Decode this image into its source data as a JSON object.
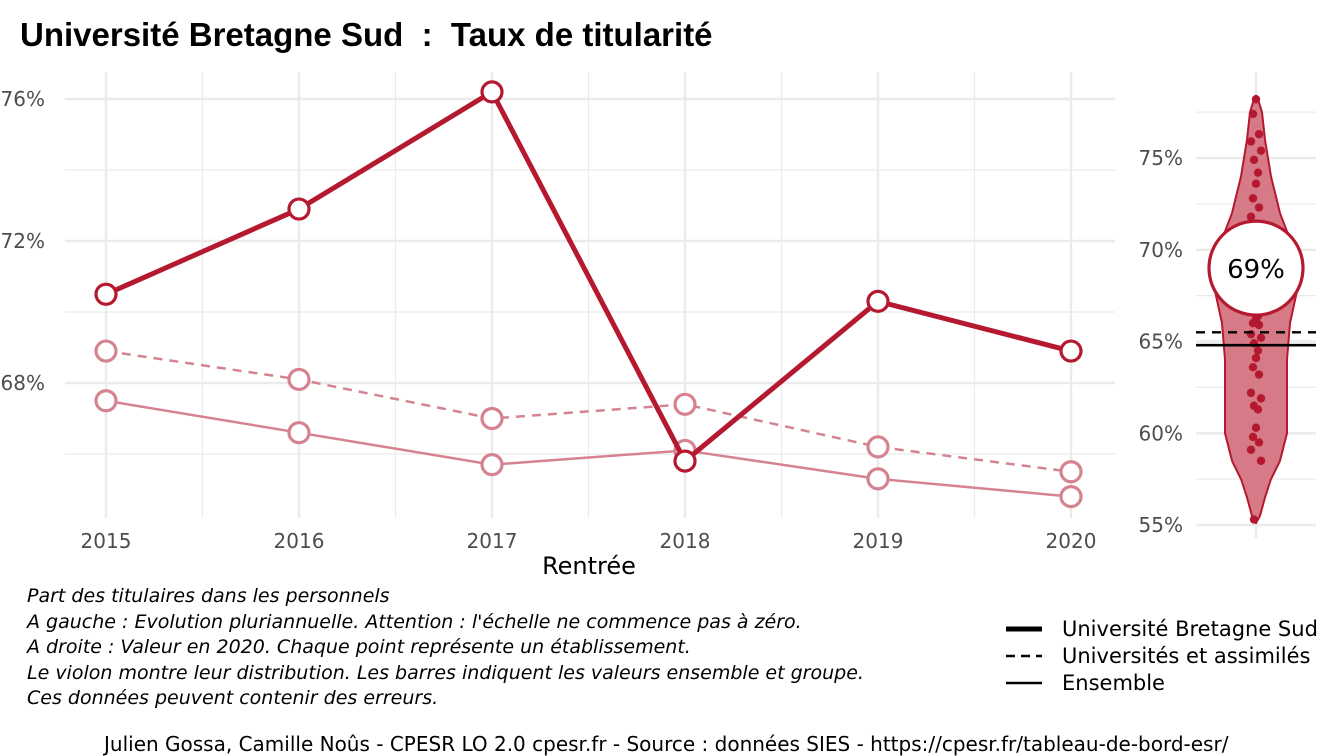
{
  "title": "Université Bretagne Sud  :  Taux de titularité",
  "chart_data": [
    {
      "type": "line",
      "x": [
        "2015",
        "2016",
        "2017",
        "2018",
        "2019",
        "2020"
      ],
      "xlabel": "Rentrée",
      "ylabel": "",
      "ylim": [
        63.5,
        76.8
      ],
      "yticks": [
        "68%",
        "72%",
        "76%"
      ],
      "y_tick_values": [
        68,
        72,
        76
      ],
      "grid": true,
      "series": [
        {
          "name": "Université Bretagne Sud",
          "style": "solid-thick",
          "values": [
            70.5,
            72.9,
            76.2,
            65.8,
            70.3,
            68.9
          ]
        },
        {
          "name": "Universités et assimilés",
          "style": "dashed",
          "values": [
            68.9,
            68.1,
            67.0,
            67.4,
            66.2,
            65.5
          ]
        },
        {
          "name": "Ensemble",
          "style": "solid-thin",
          "values": [
            67.5,
            66.6,
            65.7,
            66.1,
            65.3,
            64.8
          ]
        }
      ]
    },
    {
      "type": "violin",
      "ylim": [
        54.5,
        79
      ],
      "yticks": [
        "55%",
        "60%",
        "65%",
        "70%",
        "75%"
      ],
      "y_tick_values": [
        55,
        60,
        65,
        70,
        75
      ],
      "current_value_label": "69%",
      "current_value": 69,
      "group_value": 65.5,
      "overall_value": 64.8,
      "points": [
        78.2,
        77.4,
        76.3,
        75.9,
        75.4,
        74.9,
        74.2,
        73.6,
        72.8,
        72.3,
        71.8,
        71.2,
        70.8,
        70.1,
        69.6,
        69.0,
        68.5,
        67.8,
        67.2,
        66.9,
        66.4,
        66.2,
        66.0,
        65.9,
        65.4,
        65.2,
        64.9,
        64.5,
        64.1,
        63.6,
        63.2,
        62.2,
        61.9,
        61.5,
        61.3,
        60.3,
        59.8,
        59.5,
        59.1,
        58.5,
        55.3
      ]
    }
  ],
  "notes": [
    "Part des titulaires dans les personnels",
    "A gauche : Evolution pluriannuelle. Attention : l'échelle ne commence pas à zéro.",
    "A droite : Valeur en 2020. Chaque point représente un établissement.",
    "Le violon montre leur distribution. Les barres indiquent les valeurs ensemble et groupe.",
    "Ces données peuvent contenir des erreurs."
  ],
  "legend": [
    {
      "label": "Université Bretagne Sud",
      "style": "solid-thick"
    },
    {
      "label": "Universités et assimilés",
      "style": "dashed"
    },
    {
      "label": "Ensemble",
      "style": "solid-thin"
    }
  ],
  "caption": "Julien Gossa, Camille Noûs - CPESR LO 2.0 cpesr.fr - Source : données SIES - https://cpesr.fr/tableau-de-bord-esr/",
  "colors": {
    "main": "#B5192F",
    "light": "#D58390",
    "violin_fill": "#D67A87",
    "grid": "#EBEBEB"
  }
}
